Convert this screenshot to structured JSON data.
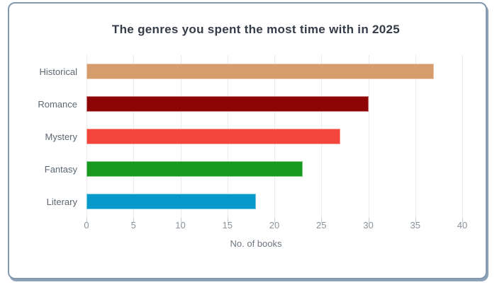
{
  "card": {
    "background": "#FFFFFF",
    "border_color": "#8198B0",
    "shadow_color": "#8FA3B8"
  },
  "chart_data": {
    "type": "bar",
    "orientation": "horizontal",
    "title": "The genres you spent the most time with in 2025",
    "xlabel": "No. of books",
    "categories": [
      "Historical",
      "Romance",
      "Mystery",
      "Fantasy",
      "Literary"
    ],
    "values": [
      37,
      30,
      27,
      23,
      18
    ],
    "bar_colors": [
      "#D69C6C",
      "#8E0404",
      "#F4453C",
      "#189A20",
      "#0599CC"
    ],
    "xlim": [
      0,
      40
    ],
    "xticks": [
      0,
      5,
      10,
      15,
      20,
      25,
      30,
      35,
      40
    ],
    "grid": true,
    "legend": false
  },
  "style": {
    "title_color": "#353C48",
    "category_label_color": "#5D6771",
    "tick_label_color": "#8A929B",
    "axis_label_color": "#6E7680",
    "gridline_color": "#E9EBEF",
    "tick_mark_color": "#C9CED5",
    "bar_border_color": "rgba(255,255,255,0.45)"
  }
}
